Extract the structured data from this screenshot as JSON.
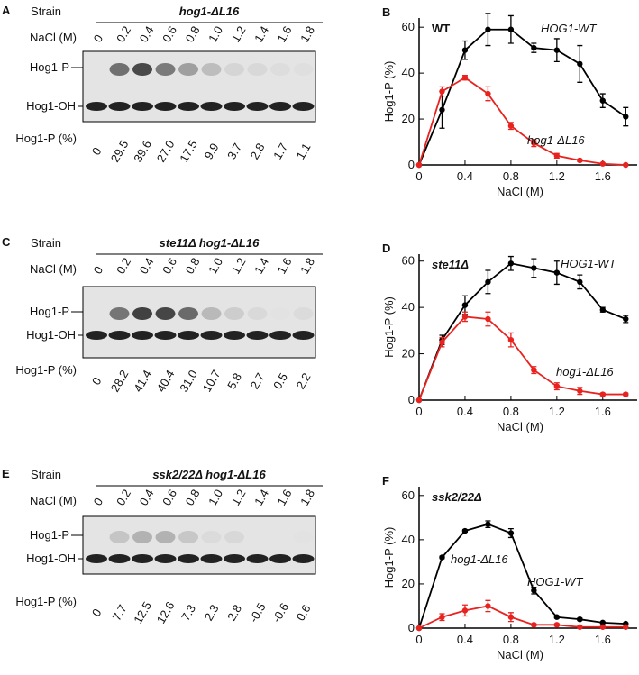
{
  "blots": [
    {
      "panel": "A",
      "strain_label": "Strain",
      "strain": "hog1-ΔL16",
      "nacl_label": "NaCl (M)",
      "nacl": [
        "0",
        "0.2",
        "0.4",
        "0.6",
        "0.8",
        "1.0",
        "1.2",
        "1.4",
        "1.6",
        "1.8"
      ],
      "band_p": "Hog1-P",
      "band_oh": "Hog1-OH",
      "pct_label": "Hog1-P (%)",
      "pct": [
        "0",
        "29.5",
        "39.6",
        "27.0",
        "17.5",
        "9.9",
        "3.7",
        "2.8",
        "1.7",
        "1.1"
      ]
    },
    {
      "panel": "C",
      "strain_label": "Strain",
      "strain": "ste11Δ hog1-ΔL16",
      "nacl_label": "NaCl (M)",
      "nacl": [
        "0",
        "0.2",
        "0.4",
        "0.6",
        "0.8",
        "1.0",
        "1.2",
        "1.4",
        "1.6",
        "1.8"
      ],
      "band_p": "Hog1-P",
      "band_oh": "Hog1-OH",
      "pct_label": "Hog1-P (%)",
      "pct": [
        "0",
        "28.2",
        "41.4",
        "40.4",
        "31.0",
        "10.7",
        "5.8",
        "2.7",
        "0.5",
        "2.2"
      ]
    },
    {
      "panel": "E",
      "strain_label": "Strain",
      "strain": "ssk2/22Δ hog1-ΔL16",
      "nacl_label": "NaCl (M)",
      "nacl": [
        "0",
        "0.2",
        "0.4",
        "0.6",
        "0.8",
        "1.0",
        "1.2",
        "1.4",
        "1.6",
        "1.8"
      ],
      "band_p": "Hog1-P",
      "band_oh": "Hog1-OH",
      "pct_label": "Hog1-P (%)",
      "pct": [
        "0",
        "7.7",
        "12.5",
        "12.6",
        "7.3",
        "2.3",
        "2.8",
        "-0.5",
        "-0.6",
        "0.6"
      ]
    }
  ],
  "chart_data": [
    {
      "type": "line",
      "panel": "B",
      "title": "WT",
      "xlabel": "NaCl (M)",
      "ylabel": "Hog1-P (%)",
      "x": [
        0,
        0.2,
        0.4,
        0.6,
        0.8,
        1.0,
        1.2,
        1.4,
        1.6,
        1.8
      ],
      "series": [
        {
          "name": "HOG1-WT",
          "color": "#000000",
          "values": [
            0,
            24,
            50,
            59,
            59,
            51,
            50,
            44,
            28,
            21
          ],
          "errors": [
            0,
            8,
            4,
            7,
            6,
            2,
            5,
            8,
            3,
            4
          ]
        },
        {
          "name": "hog1-ΔL16",
          "color": "#e8231f",
          "values": [
            0,
            32,
            38,
            31,
            17,
            9.5,
            4,
            2,
            0.5,
            0
          ],
          "errors": [
            0,
            2,
            1,
            3,
            1.5,
            1.5,
            1,
            0.5,
            0.3,
            0.3
          ]
        }
      ],
      "xlim": [
        0,
        1.9
      ],
      "ylim": [
        0,
        64
      ],
      "xticks": [
        0,
        0.4,
        0.8,
        1.2,
        1.6
      ],
      "yticks": [
        0,
        20,
        40,
        60
      ]
    },
    {
      "type": "line",
      "panel": "D",
      "title": "ste11Δ",
      "xlabel": "NaCl (M)",
      "ylabel": "Hog1-P (%)",
      "x": [
        0,
        0.2,
        0.4,
        0.6,
        0.8,
        1.0,
        1.2,
        1.4,
        1.6,
        1.8
      ],
      "series": [
        {
          "name": "HOG1-WT",
          "color": "#000000",
          "values": [
            0,
            26,
            41,
            51,
            59,
            57,
            55,
            51,
            39,
            35
          ],
          "errors": [
            0,
            2,
            4,
            5,
            3,
            4,
            5,
            3,
            1,
            1.5
          ]
        },
        {
          "name": "hog1-ΔL16",
          "color": "#e8231f",
          "values": [
            0,
            25,
            36,
            35,
            26,
            13,
            6,
            4,
            2.5,
            2.5
          ],
          "errors": [
            0,
            2,
            2,
            3,
            3,
            1.5,
            1.5,
            1.5,
            0.5,
            0.5
          ]
        }
      ],
      "xlim": [
        0,
        1.9
      ],
      "ylim": [
        0,
        63
      ],
      "xticks": [
        0,
        0.4,
        0.8,
        1.2,
        1.6
      ],
      "yticks": [
        0,
        20,
        40,
        60
      ]
    },
    {
      "type": "line",
      "panel": "F",
      "title": "ssk2/22Δ",
      "xlabel": "NaCl (M)",
      "ylabel": "Hog1-P (%)",
      "x": [
        0,
        0.2,
        0.4,
        0.6,
        0.8,
        1.0,
        1.2,
        1.4,
        1.6,
        1.8
      ],
      "series": [
        {
          "name": "HOG1-WT",
          "color": "#000000",
          "values": [
            0,
            32,
            44,
            47,
            43,
            17,
            5,
            4,
            2.5,
            2
          ],
          "errors": [
            0,
            0.5,
            0.5,
            1.5,
            2,
            1.5,
            0.5,
            0.5,
            0.3,
            0.3
          ]
        },
        {
          "name": "hog1-ΔL16",
          "color": "#e8231f",
          "values": [
            0,
            5,
            8,
            10,
            5,
            1.5,
            1.5,
            0.5,
            0.5,
            0.5
          ],
          "errors": [
            0,
            1.5,
            2.5,
            2.5,
            2,
            0.5,
            0.5,
            0.3,
            0.3,
            0.3
          ]
        }
      ],
      "xlim": [
        0,
        1.9
      ],
      "ylim": [
        0,
        64
      ],
      "xticks": [
        0,
        0.4,
        0.8,
        1.2,
        1.6
      ],
      "yticks": [
        0,
        20,
        40,
        60
      ]
    }
  ]
}
